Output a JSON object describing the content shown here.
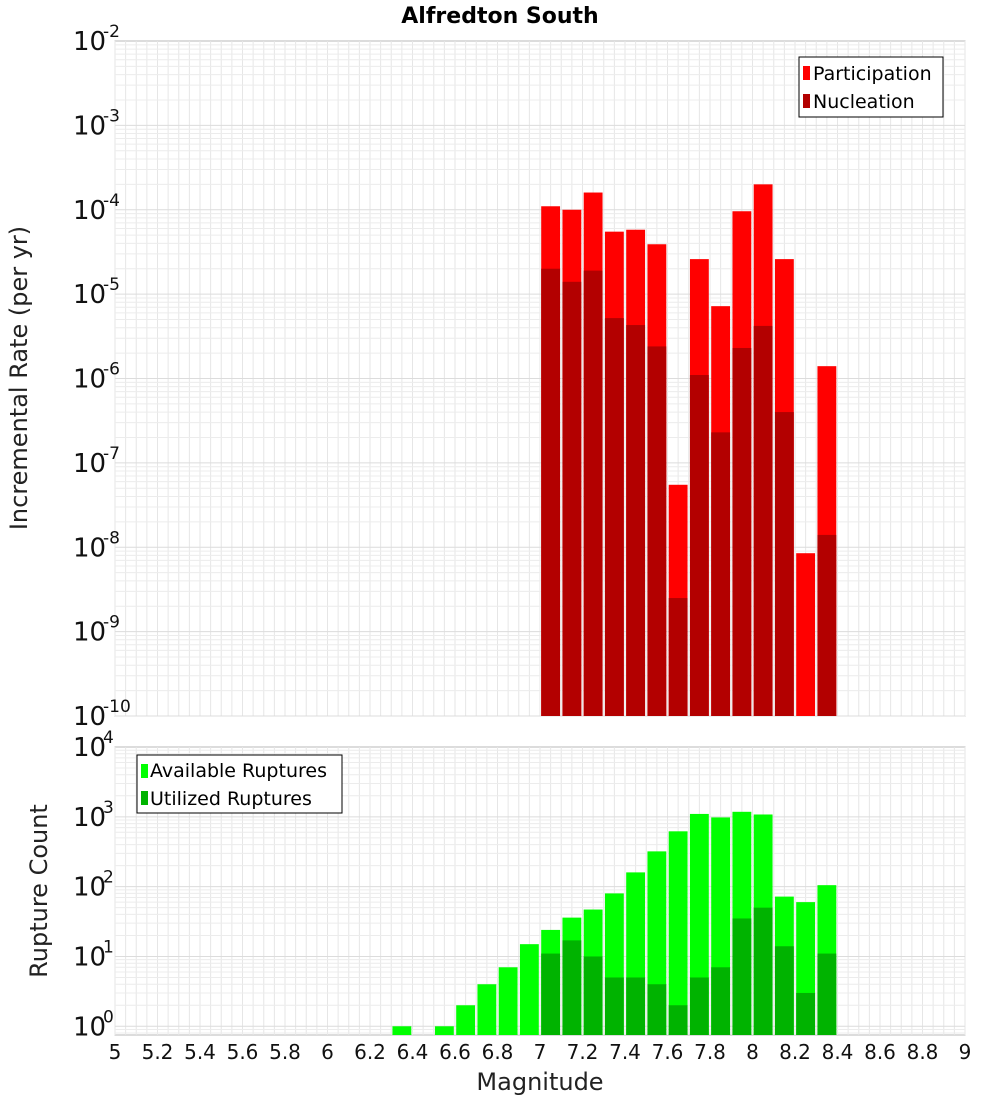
{
  "chart_data": [
    {
      "type": "bar",
      "title": "Alfredton South",
      "xlabel": "",
      "ylabel": "Incremental Rate (per yr)",
      "yscale": "log",
      "xlim": [
        5,
        9
      ],
      "ylim": [
        1e-10,
        0.01
      ],
      "y_tick_base": "10",
      "y_tick_exponents": [
        "-10",
        "-9",
        "-8",
        "-7",
        "-6",
        "-5",
        "-4",
        "-3",
        "-2"
      ],
      "bar_width": 0.1,
      "legend_position": "top-right",
      "x": [
        7.05,
        7.15,
        7.25,
        7.35,
        7.45,
        7.55,
        7.65,
        7.75,
        7.85,
        7.95,
        8.05,
        8.15,
        8.25,
        8.35
      ],
      "series": [
        {
          "name": "Participation",
          "color": "#ff0000",
          "values": [
            0.00011,
            0.0001,
            0.00016,
            5.5e-05,
            5.8e-05,
            3.9e-05,
            5.5e-08,
            2.6e-05,
            7.2e-06,
            9.6e-05,
            0.0002,
            2.6e-05,
            8.5e-09,
            1.4e-06
          ]
        },
        {
          "name": "Nucleation",
          "color": "#b30000",
          "values": [
            2e-05,
            1.4e-05,
            1.9e-05,
            5.2e-06,
            4.3e-06,
            2.4e-06,
            2.5e-09,
            1.1e-06,
            2.3e-07,
            2.3e-06,
            4.2e-06,
            4e-07,
            null,
            1.4e-08
          ]
        }
      ]
    },
    {
      "type": "bar",
      "title": "",
      "xlabel": "Magnitude",
      "ylabel": "Rupture Count",
      "yscale": "log",
      "xlim": [
        5,
        9
      ],
      "ylim": [
        0.75,
        10000.0
      ],
      "y_tick_base": "10",
      "y_tick_exponents": [
        "0",
        "1",
        "2",
        "3",
        "4"
      ],
      "x_ticks": [
        "5",
        "5.2",
        "5.4",
        "5.6",
        "5.8",
        "6",
        "6.2",
        "6.4",
        "6.6",
        "6.8",
        "7",
        "7.2",
        "7.4",
        "7.6",
        "7.8",
        "8",
        "8.2",
        "8.4",
        "8.6",
        "8.8",
        "9"
      ],
      "bar_width": 0.1,
      "legend_position": "top-left",
      "x": [
        6.35,
        6.55,
        6.65,
        6.75,
        6.85,
        6.95,
        7.05,
        7.15,
        7.25,
        7.35,
        7.45,
        7.55,
        7.65,
        7.75,
        7.85,
        7.95,
        8.05,
        8.15,
        8.25,
        8.35
      ],
      "series": [
        {
          "name": "Available Ruptures",
          "color": "#00ff00",
          "values": [
            1,
            1,
            2,
            4,
            7,
            15,
            24,
            36,
            47,
            80,
            160,
            320,
            620,
            1100,
            980,
            1180,
            1080,
            72,
            60,
            105
          ]
        },
        {
          "name": "Utilized Ruptures",
          "color": "#00b300",
          "values": [
            null,
            null,
            null,
            null,
            null,
            null,
            11,
            17,
            10,
            5,
            5,
            4,
            2,
            5,
            7,
            35,
            50,
            14,
            3,
            11
          ]
        }
      ]
    }
  ]
}
